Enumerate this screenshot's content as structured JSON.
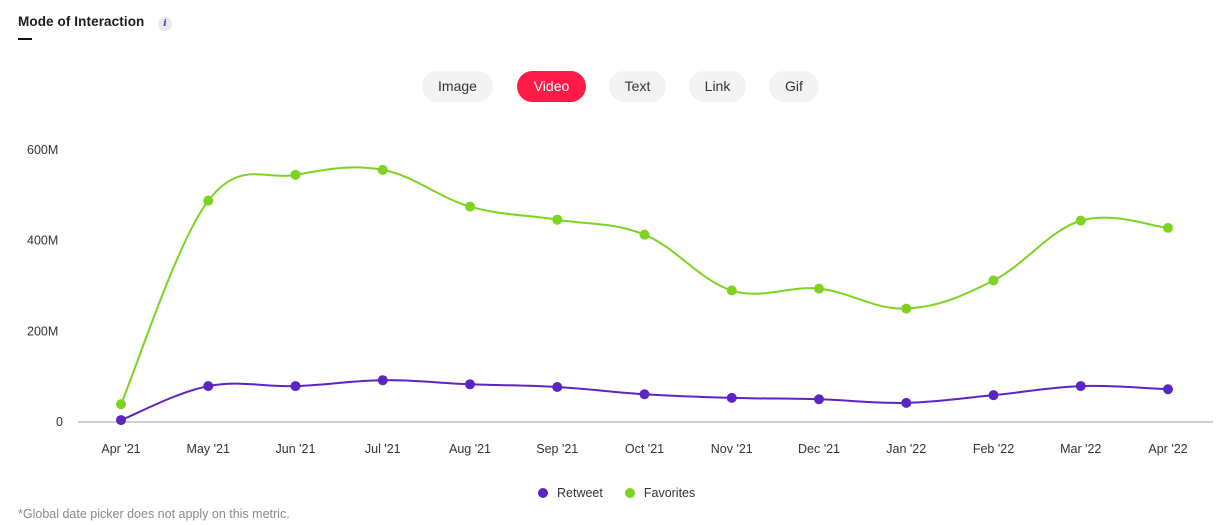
{
  "header": {
    "title": "Mode of Interaction",
    "info_icon": "i"
  },
  "tabs": [
    {
      "label": "Image",
      "active": false
    },
    {
      "label": "Video",
      "active": true
    },
    {
      "label": "Text",
      "active": false
    },
    {
      "label": "Link",
      "active": false
    },
    {
      "label": "Gif",
      "active": false
    }
  ],
  "colors": {
    "accent": "#ff1a47",
    "retweet": "#5b25c4",
    "favorites": "#7ed321",
    "axis": "#9e9e9e"
  },
  "legend": [
    {
      "label": "Retweet",
      "color": "#5b25c4"
    },
    {
      "label": "Favorites",
      "color": "#7ed321"
    }
  ],
  "footnote": "*Global date picker does not apply on this metric.",
  "chart_data": {
    "type": "line",
    "title": "Mode of Interaction",
    "subtitle": "Video",
    "xlabel": "",
    "ylabel": "",
    "x": [
      "Apr '21",
      "May '21",
      "Jun '21",
      "Jul '21",
      "Aug '21",
      "Sep '21",
      "Oct '21",
      "Nov '21",
      "Dec '21",
      "Jan '22",
      "Feb '22",
      "Mar '22",
      "Apr '22"
    ],
    "yticks": [
      "0",
      "200M",
      "400M",
      "600M"
    ],
    "ylim": [
      0,
      600000000
    ],
    "grid": false,
    "legend_position": "bottom",
    "series": [
      {
        "name": "Retweet",
        "color": "#5b25c4",
        "values": [
          2000000,
          77000000,
          77000000,
          90000000,
          81000000,
          75000000,
          59000000,
          51000000,
          48000000,
          40000000,
          57000000,
          77000000,
          70000000
        ]
      },
      {
        "name": "Favorites",
        "color": "#7ed321",
        "values": [
          37000000,
          486000000,
          543000000,
          554000000,
          473000000,
          444000000,
          411000000,
          288000000,
          292000000,
          248000000,
          310000000,
          442000000,
          426000000
        ]
      }
    ]
  }
}
